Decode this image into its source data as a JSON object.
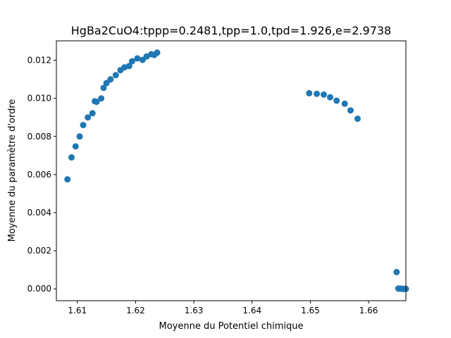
{
  "chart_data": {
    "type": "scatter",
    "title": "HgBa2CuO4:tppp=0.2481,tpp=1.0,tpd=1.926,e=2.9738",
    "xlabel": "Moyenne du Potentiel chimique",
    "ylabel": "Moyenne du paramètre d'ordre",
    "xlim": [
      1.6064,
      1.6664
    ],
    "ylim": [
      -0.00062,
      0.01302
    ],
    "grid": false,
    "marker_color": "#1f77b4",
    "x_ticks": [
      {
        "value": 1.61,
        "label": "1.61"
      },
      {
        "value": 1.62,
        "label": "1.62"
      },
      {
        "value": 1.63,
        "label": "1.63"
      },
      {
        "value": 1.64,
        "label": "1.64"
      },
      {
        "value": 1.65,
        "label": "1.65"
      },
      {
        "value": 1.66,
        "label": "1.66"
      }
    ],
    "y_ticks": [
      {
        "value": 0.0,
        "label": "0.000"
      },
      {
        "value": 0.002,
        "label": "0.002"
      },
      {
        "value": 0.004,
        "label": "0.004"
      },
      {
        "value": 0.006,
        "label": "0.006"
      },
      {
        "value": 0.008,
        "label": "0.008"
      },
      {
        "value": 0.01,
        "label": "0.010"
      },
      {
        "value": 0.012,
        "label": "0.012"
      }
    ],
    "points": [
      {
        "x": 1.6083,
        "y": 0.00575
      },
      {
        "x": 1.609,
        "y": 0.0069
      },
      {
        "x": 1.6097,
        "y": 0.00748
      },
      {
        "x": 1.6104,
        "y": 0.008
      },
      {
        "x": 1.611,
        "y": 0.0086
      },
      {
        "x": 1.6118,
        "y": 0.009
      },
      {
        "x": 1.6126,
        "y": 0.00922
      },
      {
        "x": 1.613,
        "y": 0.00985
      },
      {
        "x": 1.6133,
        "y": 0.00982
      },
      {
        "x": 1.6141,
        "y": 0.01
      },
      {
        "x": 1.6145,
        "y": 0.01055
      },
      {
        "x": 1.615,
        "y": 0.0108
      },
      {
        "x": 1.6157,
        "y": 0.011
      },
      {
        "x": 1.6166,
        "y": 0.01122
      },
      {
        "x": 1.6174,
        "y": 0.01148
      },
      {
        "x": 1.6181,
        "y": 0.01163
      },
      {
        "x": 1.6189,
        "y": 0.0117
      },
      {
        "x": 1.6194,
        "y": 0.01195
      },
      {
        "x": 1.6203,
        "y": 0.0121
      },
      {
        "x": 1.6212,
        "y": 0.01202
      },
      {
        "x": 1.6219,
        "y": 0.0122
      },
      {
        "x": 1.6227,
        "y": 0.01232
      },
      {
        "x": 1.6232,
        "y": 0.01228
      },
      {
        "x": 1.6237,
        "y": 0.0124
      },
      {
        "x": 1.6498,
        "y": 0.01027
      },
      {
        "x": 1.6511,
        "y": 0.01024
      },
      {
        "x": 1.6523,
        "y": 0.0102
      },
      {
        "x": 1.6534,
        "y": 0.01006
      },
      {
        "x": 1.6545,
        "y": 0.00988
      },
      {
        "x": 1.6559,
        "y": 0.00972
      },
      {
        "x": 1.6569,
        "y": 0.00937
      },
      {
        "x": 1.6581,
        "y": 0.00893
      },
      {
        "x": 1.6648,
        "y": 0.00088
      },
      {
        "x": 1.6651,
        "y": 2e-05
      },
      {
        "x": 1.6654,
        "y": 1e-05
      },
      {
        "x": 1.6656,
        "y": 1e-05
      },
      {
        "x": 1.6658,
        "y": 0.0
      },
      {
        "x": 1.666,
        "y": 0.0
      },
      {
        "x": 1.6662,
        "y": 0.0
      },
      {
        "x": 1.6664,
        "y": 0.0
      }
    ]
  }
}
